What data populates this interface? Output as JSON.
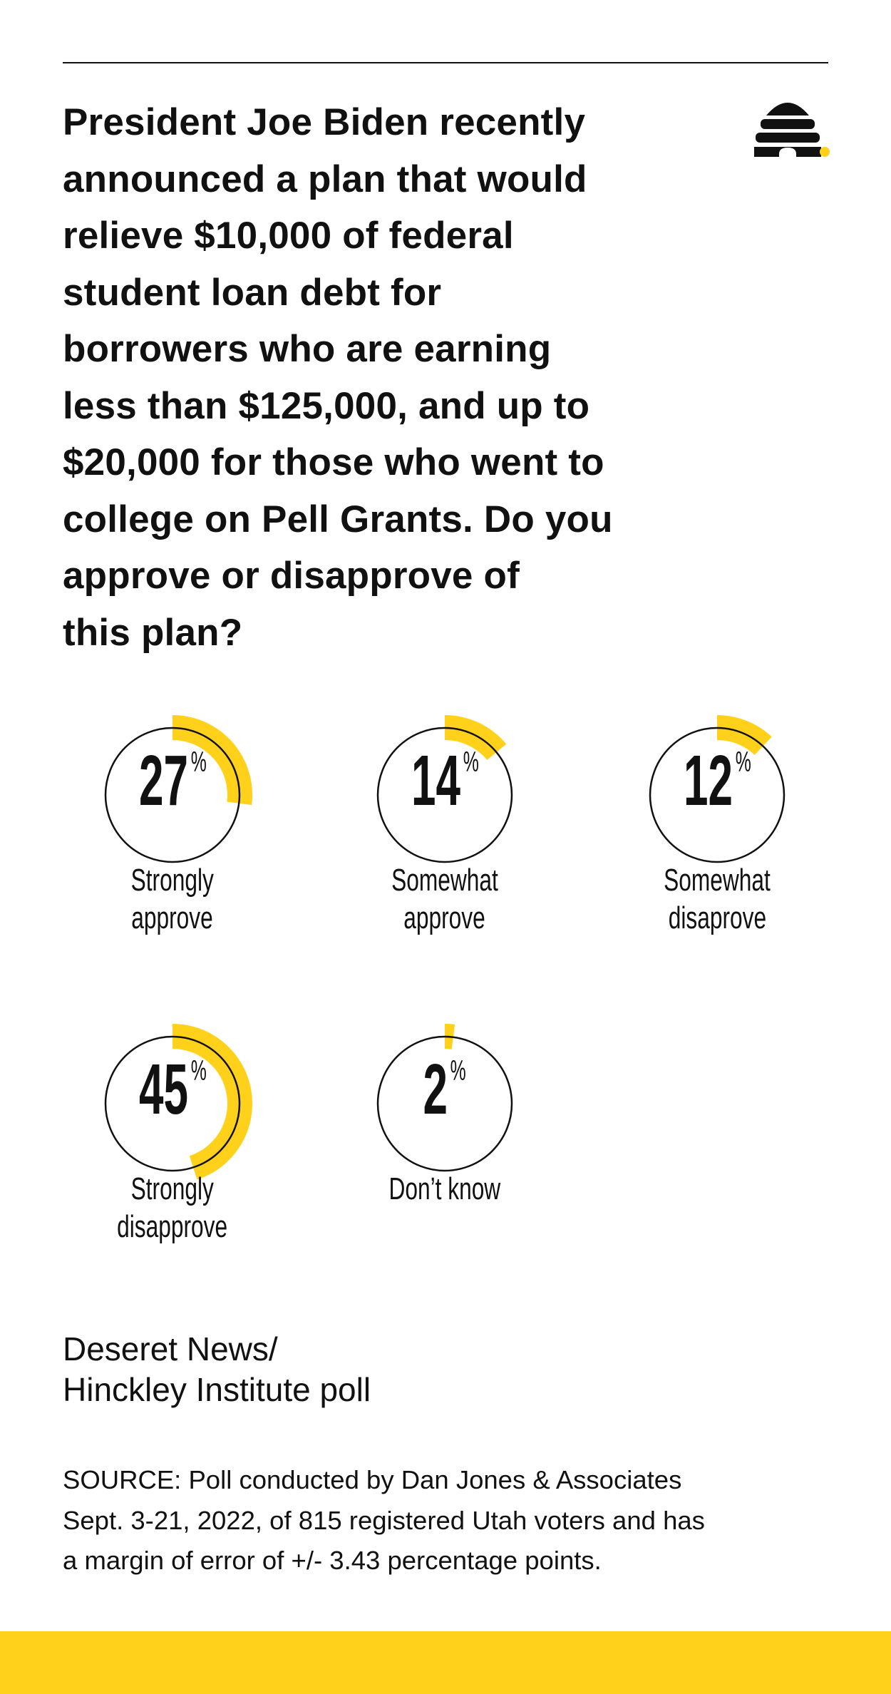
{
  "colors": {
    "accent": "#FFD11A",
    "ink": "#111111"
  },
  "logo": {
    "name": "beehive-logo"
  },
  "title_lines": [
    "President Joe Biden recently",
    "announced a plan that would",
    "relieve $10,000 of federal",
    "student loan debt for",
    "borrowers who are earning",
    "less than $125,000, and up to",
    "$20,000 for those who went to",
    "college on Pell Grants. Do you",
    "approve or disapprove of",
    "this plan?"
  ],
  "chart_data": {
    "type": "pie",
    "style": "radial-progress",
    "unit": "%",
    "categories": [
      "Strongly approve",
      "Somewhat approve",
      "Somewhat disaprove",
      "Strongly disapprove",
      "Don’t know"
    ],
    "values": [
      27,
      14,
      12,
      45,
      2
    ],
    "items": [
      {
        "value": "27",
        "unit": "%",
        "label_lines": [
          "Strongly",
          "approve"
        ]
      },
      {
        "value": "14",
        "unit": "%",
        "label_lines": [
          "Somewhat",
          "approve"
        ]
      },
      {
        "value": "12",
        "unit": "%",
        "label_lines": [
          "Somewhat",
          "disaprove"
        ]
      },
      {
        "value": "45",
        "unit": "%",
        "label_lines": [
          "Strongly",
          "disapprove"
        ]
      },
      {
        "value": "2",
        "unit": "%",
        "label_lines": [
          "Don’t know"
        ]
      }
    ]
  },
  "source_title_lines": [
    "Deseret News/",
    "Hinckley Institute poll"
  ],
  "source_lines": [
    "SOURCE: Poll conducted by Dan Jones & Associates",
    "Sept. 3-21, 2022, of 815 registered Utah voters and has",
    "a margin of error of +/- 3.43 percentage points."
  ]
}
